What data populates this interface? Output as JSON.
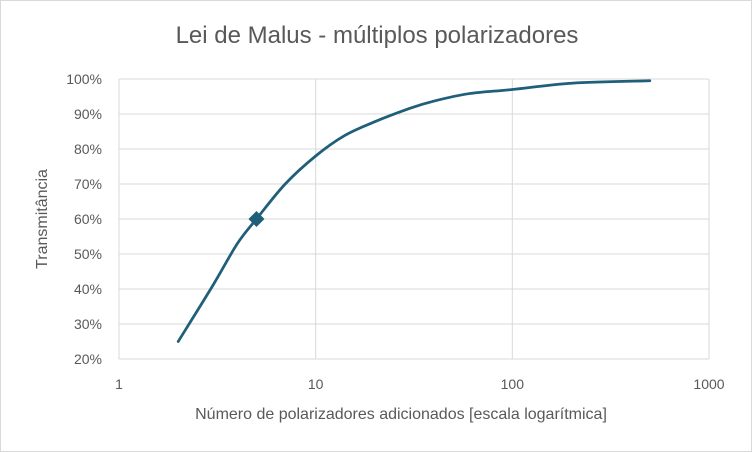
{
  "chart_data": {
    "type": "line",
    "title": "Lei de Malus - múltiplos polarizadores",
    "xlabel": "Número de polarizadores adicionados [escala logarítmica]",
    "ylabel": "Transmitância",
    "x_scale": "log",
    "xlim": [
      1,
      1000
    ],
    "ylim": [
      0.2,
      1.0
    ],
    "x_ticks": [
      1,
      10,
      100,
      1000
    ],
    "x_tick_labels": [
      "1",
      "10",
      "100",
      "1000"
    ],
    "y_ticks": [
      0.2,
      0.3,
      0.4,
      0.5,
      0.6,
      0.7,
      0.8,
      0.9,
      1.0
    ],
    "y_tick_labels": [
      "20%",
      "30%",
      "40%",
      "50%",
      "60%",
      "70%",
      "80%",
      "90%",
      "100%"
    ],
    "grid": true,
    "legend": "none",
    "series": [
      {
        "color": "#1f5f7a",
        "x": [
          2,
          3,
          4,
          5,
          7,
          10,
          14,
          20,
          30,
          40,
          60,
          100,
          200,
          500
        ],
        "y": [
          0.25,
          0.41,
          0.53,
          0.6,
          0.7,
          0.78,
          0.838,
          0.878,
          0.916,
          0.937,
          0.958,
          0.97,
          0.988,
          0.995
        ]
      }
    ],
    "highlight_point": {
      "x": 5,
      "y": 0.6,
      "marker": "diamond",
      "color": "#1f5f7a"
    }
  }
}
